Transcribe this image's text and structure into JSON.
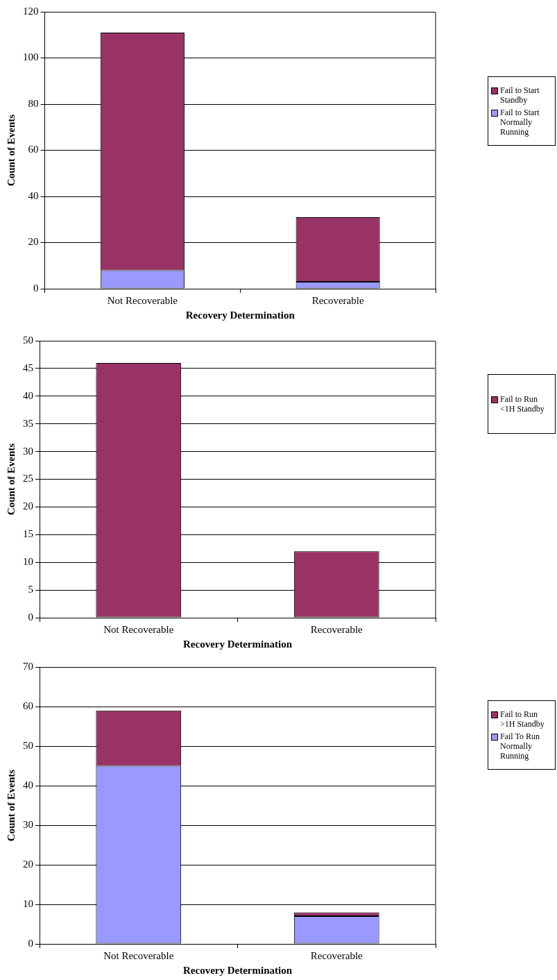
{
  "chart_data": [
    {
      "type": "bar",
      "stacked": true,
      "categories": [
        "Not Recoverable",
        "Recoverable"
      ],
      "xlabel": "Recovery Determination",
      "ylabel": "Count of Events",
      "ylim": [
        0,
        120
      ],
      "yticks": [
        0,
        20,
        40,
        60,
        80,
        100,
        120
      ],
      "grid": "y",
      "legend": "right",
      "series": [
        {
          "name": "Fail to Start Normally Running",
          "color": "#9999ff",
          "values": [
            8,
            3
          ]
        },
        {
          "name": "Fail to Start Standby",
          "color": "#993366",
          "values": [
            103,
            28
          ]
        }
      ]
    },
    {
      "type": "bar",
      "stacked": true,
      "categories": [
        "Not Recoverable",
        "Recoverable"
      ],
      "xlabel": "Recovery Determination",
      "ylabel": "Count of Events",
      "ylim": [
        0,
        50
      ],
      "yticks": [
        0,
        5,
        10,
        15,
        20,
        25,
        30,
        35,
        40,
        45,
        50
      ],
      "grid": "y",
      "legend": "right",
      "series": [
        {
          "name": "Fail to Run <1H Standby",
          "color": "#993366",
          "values": [
            46,
            12
          ]
        }
      ]
    },
    {
      "type": "bar",
      "stacked": true,
      "categories": [
        "Not Recoverable",
        "Recoverable"
      ],
      "xlabel": "Recovery Determination",
      "ylabel": "Count of Events",
      "ylim": [
        0,
        70
      ],
      "yticks": [
        0,
        10,
        20,
        30,
        40,
        50,
        60,
        70
      ],
      "grid": "y",
      "legend": "right",
      "series": [
        {
          "name": "Fail To Run Normally Running",
          "color": "#9999ff",
          "values": [
            45,
            7
          ]
        },
        {
          "name": "Fail to Run >1H Standby",
          "color": "#993366",
          "values": [
            14,
            1
          ]
        }
      ]
    }
  ]
}
